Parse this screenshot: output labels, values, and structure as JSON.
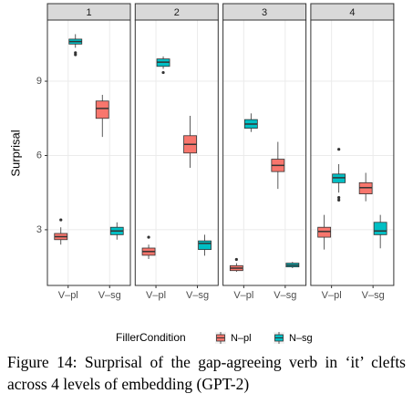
{
  "chart_data": {
    "type": "boxplot",
    "y_label": "Surprisal",
    "legend_title": "FillerCondition",
    "caption": "Figure 14: Surprisal of the gap-agreeing verb in ‘it’ clefts across 4 levels of embedding (GPT-2)",
    "categories": [
      "V–pl",
      "V–sg"
    ],
    "series": [
      {
        "name": "N–pl",
        "color": "#F8766D"
      },
      {
        "name": "N–sg",
        "color": "#00BFC4"
      }
    ],
    "ylim": [
      0.75,
      11.47
    ],
    "yticks": [
      3,
      6,
      9
    ],
    "grid": true,
    "facets": [
      {
        "label": "1",
        "boxes": [
          [
            {
              "min": 2.4,
              "q1": 2.6,
              "median": 2.72,
              "q3": 2.85,
              "max": 3.1,
              "outliers": [
                3.4
              ]
            },
            {
              "min": 6.75,
              "q1": 7.5,
              "median": 7.9,
              "q3": 8.2,
              "max": 8.45,
              "outliers": []
            }
          ],
          [
            {
              "min": 10.35,
              "q1": 10.5,
              "median": 10.6,
              "q3": 10.7,
              "max": 10.9,
              "outliers": [
                10.15,
                10.07
              ]
            },
            {
              "min": 2.6,
              "q1": 2.8,
              "median": 2.95,
              "q3": 3.1,
              "max": 3.3,
              "outliers": []
            }
          ]
        ]
      },
      {
        "label": "2",
        "boxes": [
          [
            {
              "min": 1.82,
              "q1": 1.97,
              "median": 2.12,
              "q3": 2.26,
              "max": 2.4,
              "outliers": [
                2.7
              ]
            },
            {
              "min": 5.5,
              "q1": 6.1,
              "median": 6.45,
              "q3": 6.8,
              "max": 7.6,
              "outliers": []
            }
          ],
          [
            {
              "min": 9.5,
              "q1": 9.6,
              "median": 9.77,
              "q3": 9.9,
              "max": 10.0,
              "outliers": [
                9.35
              ]
            },
            {
              "min": 1.95,
              "q1": 2.2,
              "median": 2.45,
              "q3": 2.55,
              "max": 2.8,
              "outliers": []
            }
          ]
        ]
      },
      {
        "label": "3",
        "boxes": [
          [
            {
              "min": 1.3,
              "q1": 1.35,
              "median": 1.45,
              "q3": 1.55,
              "max": 1.65,
              "outliers": [
                1.8
              ]
            },
            {
              "min": 4.65,
              "q1": 5.35,
              "median": 5.6,
              "q3": 5.85,
              "max": 6.55,
              "outliers": []
            }
          ],
          [
            {
              "min": 6.95,
              "q1": 7.1,
              "median": 7.27,
              "q3": 7.45,
              "max": 7.7,
              "outliers": []
            },
            {
              "min": 1.45,
              "q1": 1.5,
              "median": 1.57,
              "q3": 1.65,
              "max": 1.7,
              "outliers": []
            }
          ]
        ]
      },
      {
        "label": "4",
        "boxes": [
          [
            {
              "min": 2.2,
              "q1": 2.7,
              "median": 2.93,
              "q3": 3.1,
              "max": 3.6,
              "outliers": []
            },
            {
              "min": 4.15,
              "q1": 4.45,
              "median": 4.7,
              "q3": 4.9,
              "max": 5.3,
              "outliers": []
            }
          ],
          [
            {
              "min": 4.5,
              "q1": 4.9,
              "median": 5.1,
              "q3": 5.25,
              "max": 5.65,
              "outliers": [
                6.25,
                4.3,
                4.2
              ]
            },
            {
              "min": 2.25,
              "q1": 2.8,
              "median": 2.95,
              "q3": 3.3,
              "max": 3.6,
              "outliers": []
            }
          ]
        ]
      }
    ]
  }
}
